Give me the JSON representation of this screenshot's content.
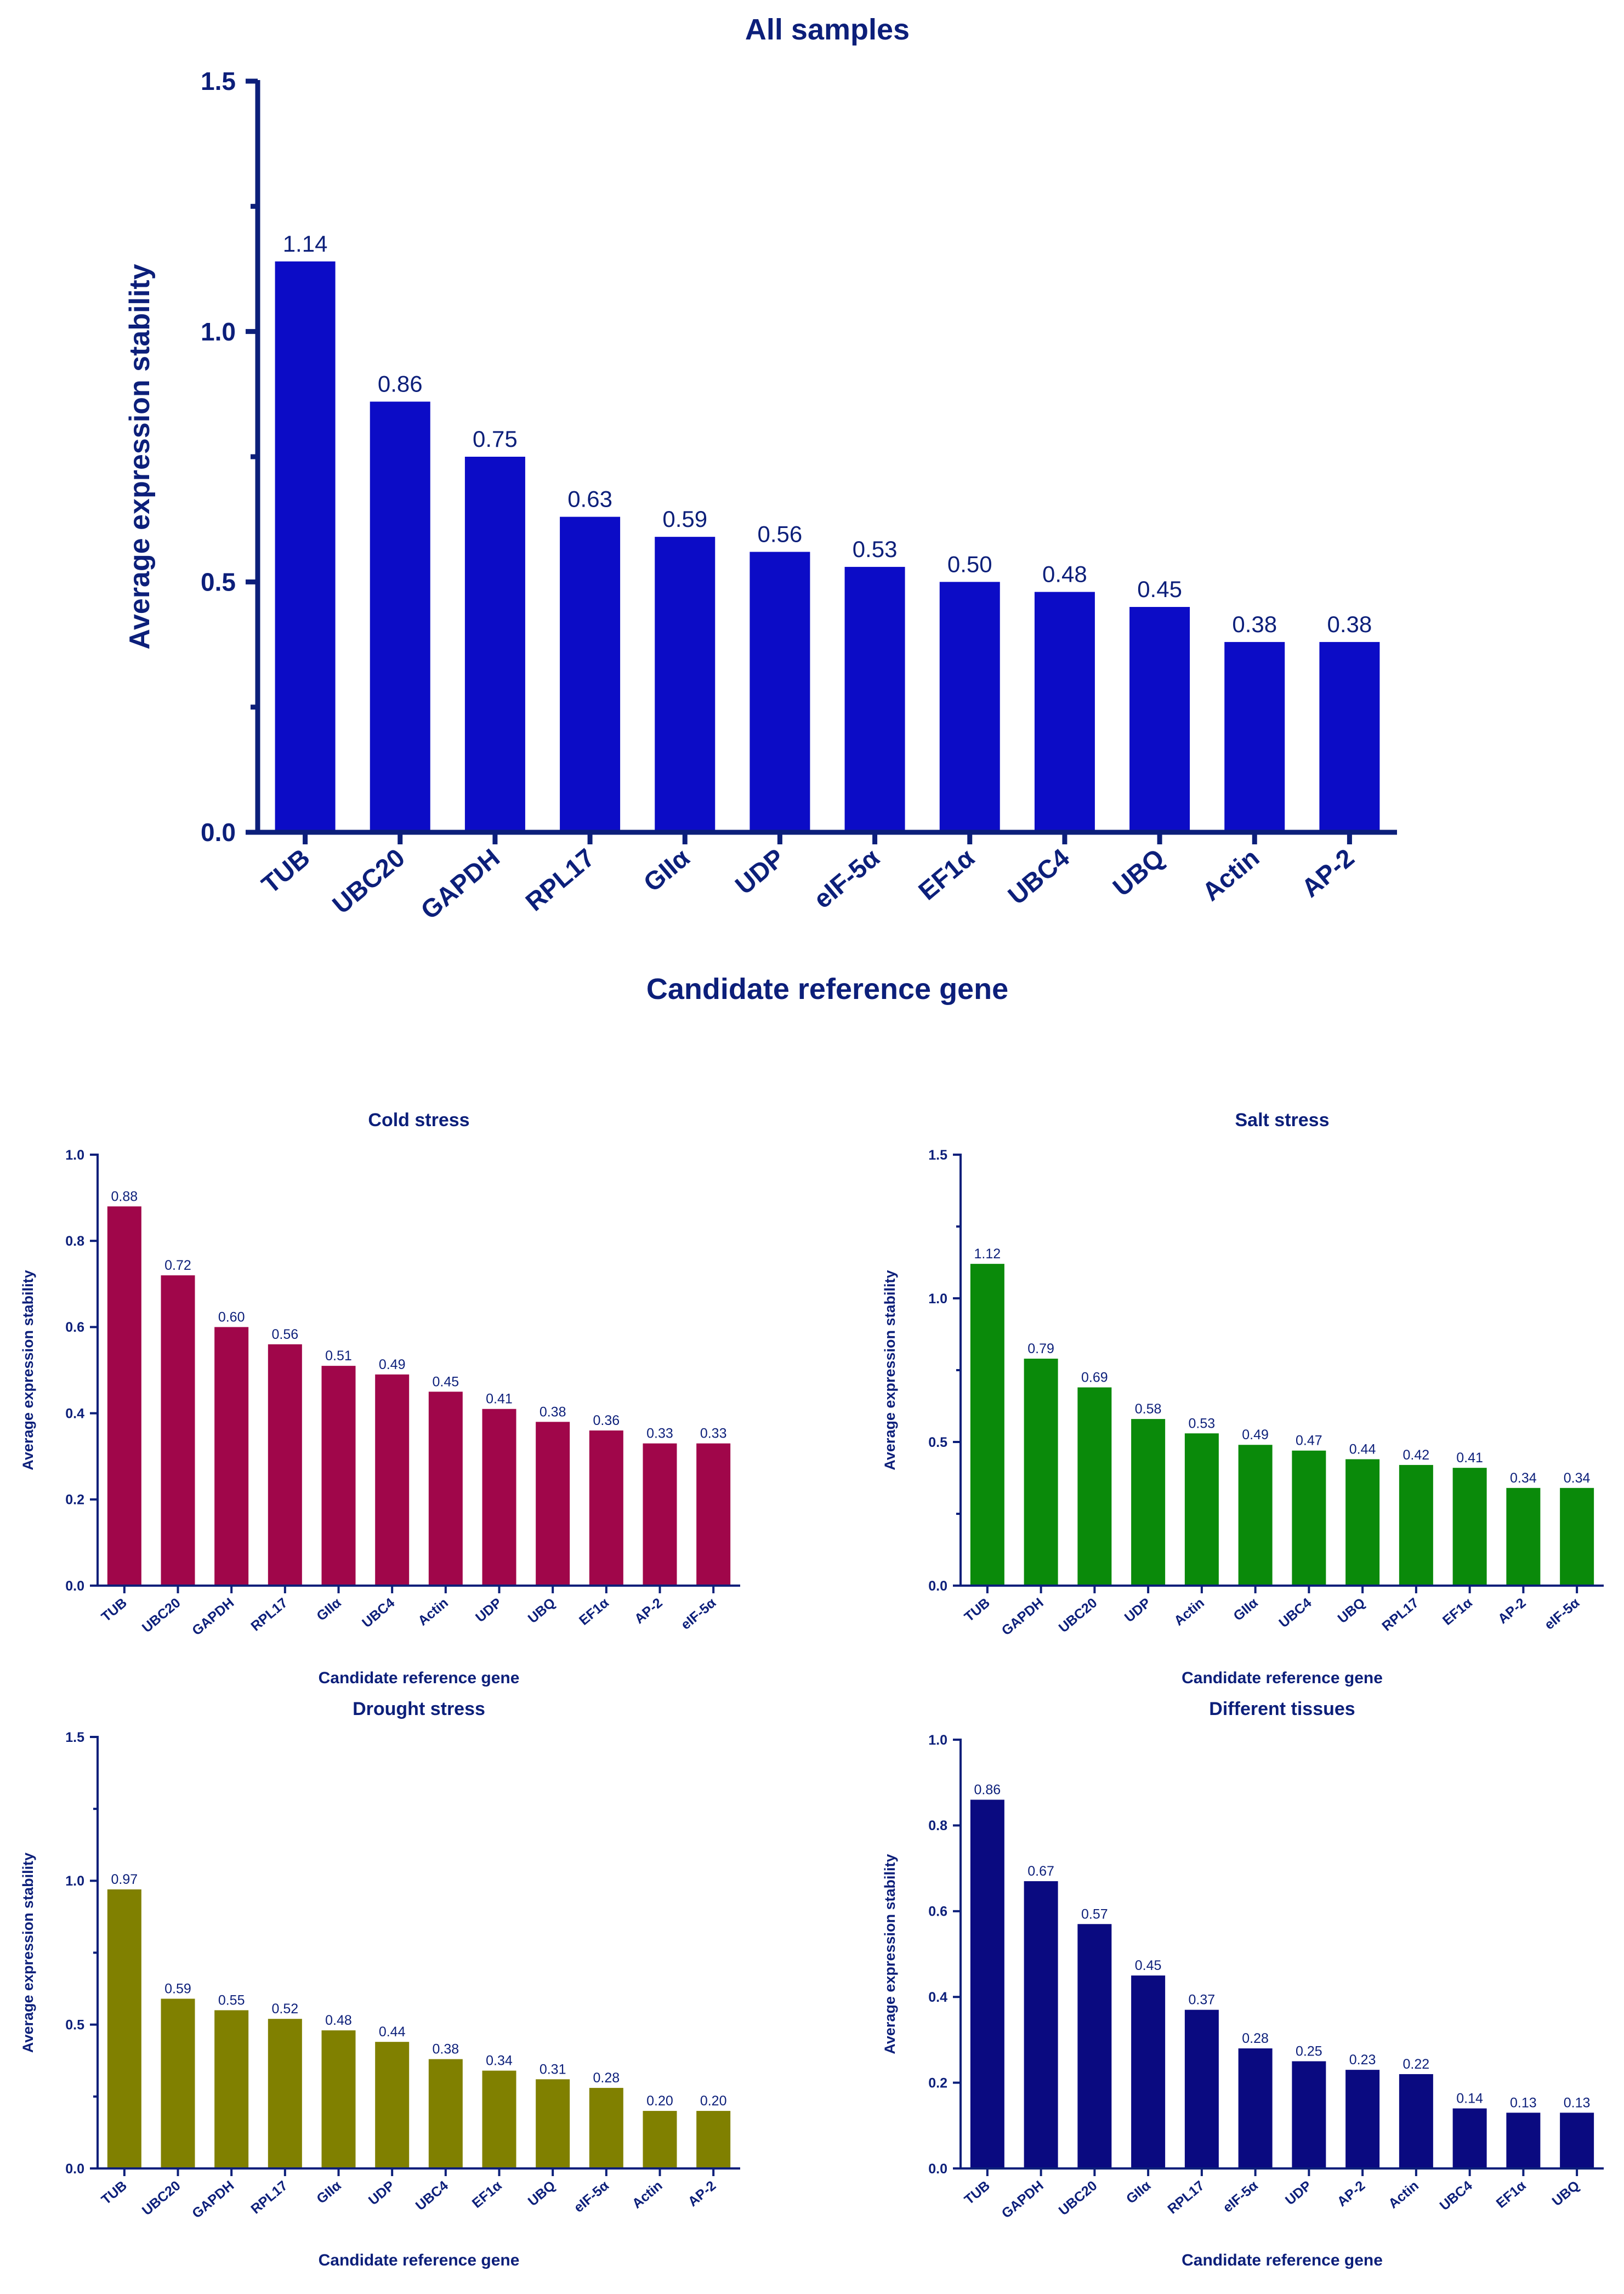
{
  "chart_data": [
    {
      "id": "all",
      "type": "bar",
      "title": "All samples",
      "xlabel": "Candidate reference gene",
      "ylabel": "Average expression stability",
      "ylim": [
        0,
        1.5
      ],
      "yticks": [
        0.0,
        0.5,
        1.0,
        1.5
      ],
      "ytick_labels": [
        "0.0",
        "0.5",
        "1.0",
        "1.5"
      ],
      "categories": [
        "TUB",
        "UBC20",
        "GAPDH",
        "RPL17",
        "GIIα",
        "UDP",
        "eIF-5α",
        "EF1α",
        "UBC4",
        "UBQ",
        "Actin",
        "AP-2"
      ],
      "values": [
        1.14,
        0.86,
        0.75,
        0.63,
        0.59,
        0.56,
        0.53,
        0.5,
        0.48,
        0.45,
        0.38,
        0.38
      ],
      "value_labels": [
        "1.14",
        "0.86",
        "0.75",
        "0.63",
        "0.59",
        "0.56",
        "0.53",
        "0.50",
        "0.48",
        "0.45",
        "0.38",
        "0.38"
      ],
      "color": "#0c0cc6",
      "text_color": "#0c1f7a"
    },
    {
      "id": "cold",
      "type": "bar",
      "title": "Cold stress",
      "xlabel": "Candidate reference gene",
      "ylabel": "Average expression stability",
      "ylim": [
        0,
        1.0
      ],
      "yticks": [
        0.0,
        0.2,
        0.4,
        0.6,
        0.8,
        1.0
      ],
      "ytick_labels": [
        "0.0",
        "0.2",
        "0.4",
        "0.6",
        "0.8",
        "1.0"
      ],
      "categories": [
        "TUB",
        "UBC20",
        "GAPDH",
        "RPL17",
        "GIIα",
        "UBC4",
        "Actin",
        "UDP",
        "UBQ",
        "EF1α",
        "AP-2",
        "eIF-5α"
      ],
      "values": [
        0.88,
        0.72,
        0.6,
        0.56,
        0.51,
        0.49,
        0.45,
        0.41,
        0.38,
        0.36,
        0.33,
        0.33
      ],
      "value_labels": [
        "0.88",
        "0.72",
        "0.60",
        "0.56",
        "0.51",
        "0.49",
        "0.45",
        "0.41",
        "0.38",
        "0.36",
        "0.33",
        "0.33"
      ],
      "color": "#a0064a",
      "text_color": "#0c1f7a"
    },
    {
      "id": "salt",
      "type": "bar",
      "title": "Salt stress",
      "xlabel": "Candidate reference gene",
      "ylabel": "Average expression stability",
      "ylim": [
        0,
        1.5
      ],
      "yticks": [
        0.0,
        0.5,
        1.0,
        1.5
      ],
      "ytick_labels": [
        "0.0",
        "0.5",
        "1.0",
        "1.5"
      ],
      "categories": [
        "TUB",
        "GAPDH",
        "UBC20",
        "UDP",
        "Actin",
        "GIIα",
        "UBC4",
        "UBQ",
        "RPL17",
        "EF1α",
        "AP-2",
        "eIF-5α"
      ],
      "values": [
        1.12,
        0.79,
        0.69,
        0.58,
        0.53,
        0.49,
        0.47,
        0.44,
        0.42,
        0.41,
        0.34,
        0.34
      ],
      "value_labels": [
        "1.12",
        "0.79",
        "0.69",
        "0.58",
        "0.53",
        "0.49",
        "0.47",
        "0.44",
        "0.42",
        "0.41",
        "0.34",
        "0.34"
      ],
      "color": "#0a8a0a",
      "text_color": "#0c1f7a"
    },
    {
      "id": "drought",
      "type": "bar",
      "title": "Drought stress",
      "xlabel": "Candidate reference gene",
      "ylabel": "Average expression stability",
      "ylim": [
        0,
        1.5
      ],
      "yticks": [
        0.0,
        0.5,
        1.0,
        1.5
      ],
      "ytick_labels": [
        "0.0",
        "0.5",
        "1.0",
        "1.5"
      ],
      "categories": [
        "TUB",
        "UBC20",
        "GAPDH",
        "RPL17",
        "GIIα",
        "UDP",
        "UBC4",
        "EF1α",
        "UBQ",
        "eIF-5α",
        "Actin",
        "AP-2"
      ],
      "values": [
        0.97,
        0.59,
        0.55,
        0.52,
        0.48,
        0.44,
        0.38,
        0.34,
        0.31,
        0.28,
        0.2,
        0.2
      ],
      "value_labels": [
        "0.97",
        "0.59",
        "0.55",
        "0.52",
        "0.48",
        "0.44",
        "0.38",
        "0.34",
        "0.31",
        "0.28",
        "0.20",
        "0.20"
      ],
      "color": "#808000",
      "text_color": "#0c1f7a"
    },
    {
      "id": "tissues",
      "type": "bar",
      "title": "Different tissues",
      "xlabel": "Candidate reference gene",
      "ylabel": "Average expression stability",
      "ylim": [
        0,
        1.0
      ],
      "yticks": [
        0.0,
        0.2,
        0.4,
        0.6,
        0.8,
        1.0
      ],
      "ytick_labels": [
        "0.0",
        "0.2",
        "0.4",
        "0.6",
        "0.8",
        "1.0"
      ],
      "categories": [
        "TUB",
        "GAPDH",
        "UBC20",
        "GIIα",
        "RPL17",
        "eIF-5α",
        "UDP",
        "AP-2",
        "Actin",
        "UBC4",
        "EF1α",
        "UBQ"
      ],
      "values": [
        0.86,
        0.67,
        0.57,
        0.45,
        0.37,
        0.28,
        0.25,
        0.23,
        0.22,
        0.14,
        0.13,
        0.13
      ],
      "value_labels": [
        "0.86",
        "0.67",
        "0.57",
        "0.45",
        "0.37",
        "0.28",
        "0.25",
        "0.23",
        "0.22",
        "0.14",
        "0.13",
        "0.13"
      ],
      "color": "#0a0a80",
      "text_color": "#0c1f7a"
    }
  ]
}
